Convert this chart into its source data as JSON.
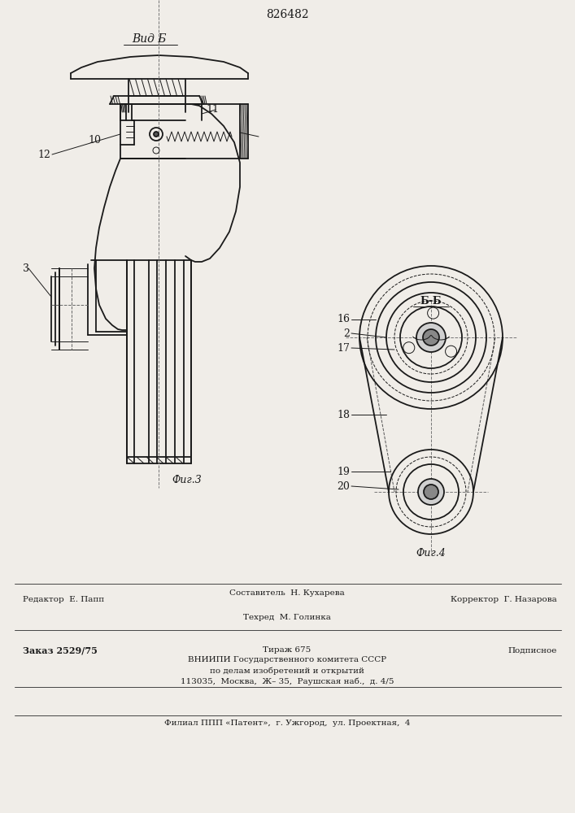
{
  "patent_number": "826482",
  "bg": "#f0ede8",
  "lc": "#1a1a1a",
  "label_vid_b": "Вид Б",
  "label_fig3": "Фиг.3",
  "label_fig4": "Фиг.4",
  "label_bb": "Б-Б",
  "footer_line1_left": "Редактор  Е. Папп",
  "footer_line1_center_top": "Составитель  Н. Кухарева",
  "footer_line1_center_bot": "Техред  М. Голинка",
  "footer_line1_right": "Корректор  Г. Назарова",
  "footer_line2_left": "Заказ 2529/75",
  "footer_line2_center": "Тираж 675",
  "footer_line2_right": "Подписное",
  "footer_vniiipi1": "ВНИИПИ Государственного комитета СССР",
  "footer_vniiipi2": "по делам изобретений и открытий",
  "footer_vniiipi3": "113035,  Москва,  Ж– 35,  Раушская наб.,  д. 4/5",
  "footer_filial": "Филиал ППП «Патент»,  г. Ужгород,  ул. Проектная,  4"
}
